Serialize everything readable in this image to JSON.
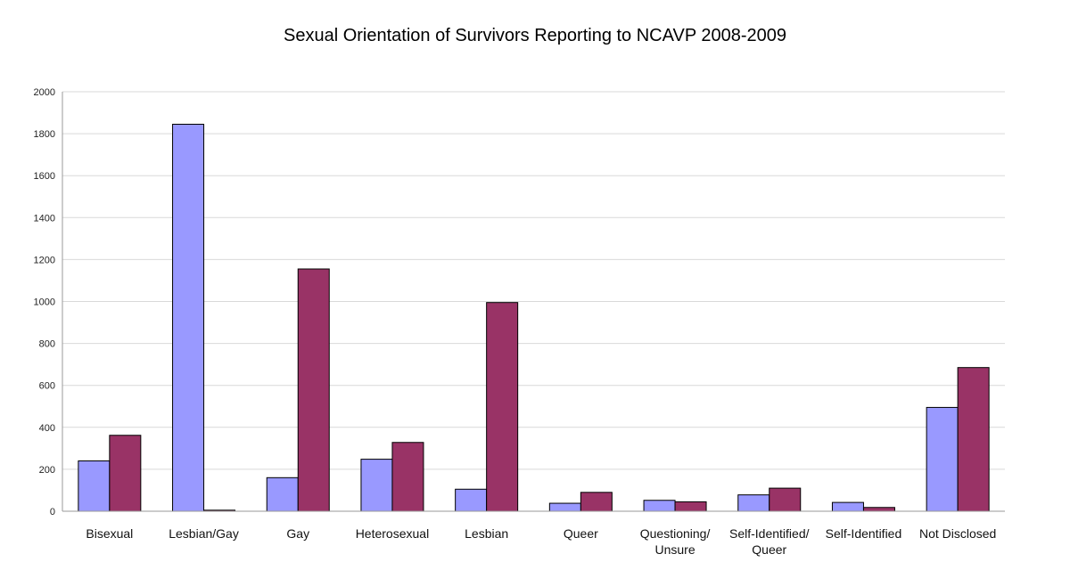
{
  "chart_data": {
    "type": "bar",
    "title": "Sexual Orientation of Survivors Reporting to NCAVP 2008-2009",
    "xlabel": "",
    "ylabel": "",
    "ylim": [
      0,
      2000
    ],
    "yticks": [
      0,
      200,
      400,
      600,
      800,
      1000,
      1200,
      1400,
      1600,
      1800,
      2000
    ],
    "grid": true,
    "legend": "none",
    "categories": [
      [
        "Bisexual"
      ],
      [
        "Lesbian/Gay"
      ],
      [
        "Gay"
      ],
      [
        "Heterosexual"
      ],
      [
        "Lesbian"
      ],
      [
        "Queer"
      ],
      [
        "Questioning/",
        "Unsure"
      ],
      [
        "Self-Identified/",
        "Queer"
      ],
      [
        "Self-Identified"
      ],
      [
        "Not Disclosed"
      ]
    ],
    "series": [
      {
        "color": "#9999ff",
        "values": [
          240,
          1845,
          160,
          248,
          105,
          38,
          52,
          78,
          42,
          495
        ]
      },
      {
        "color": "#993366",
        "values": [
          362,
          5,
          1155,
          328,
          995,
          90,
          45,
          110,
          18,
          685
        ]
      }
    ]
  }
}
